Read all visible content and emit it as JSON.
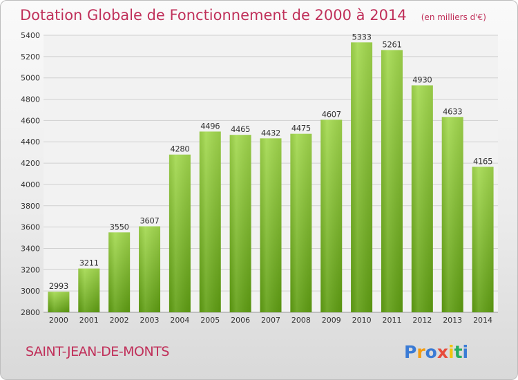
{
  "chart_data": {
    "type": "bar",
    "title": "Dotation Globale de Fonctionnement de 2000 à 2014",
    "subtitle": "(en milliers d'€)",
    "categories": [
      "2000",
      "2001",
      "2002",
      "2003",
      "2004",
      "2005",
      "2006",
      "2007",
      "2008",
      "2009",
      "2010",
      "2011",
      "2012",
      "2013",
      "2014"
    ],
    "values": [
      2993,
      3211,
      3550,
      3607,
      4280,
      4496,
      4465,
      4432,
      4475,
      4607,
      5333,
      5261,
      4930,
      4633,
      4165
    ],
    "ylim": [
      2800,
      5400
    ],
    "yticks": [
      2800,
      3000,
      3200,
      3400,
      3600,
      3800,
      4000,
      4200,
      4400,
      4600,
      4800,
      5000,
      5200,
      5400
    ],
    "grid": true,
    "bar_color": "#7cbf2f"
  },
  "footer": {
    "city": "SAINT-JEAN-DE-MONTS",
    "logo": "Proxiti"
  }
}
